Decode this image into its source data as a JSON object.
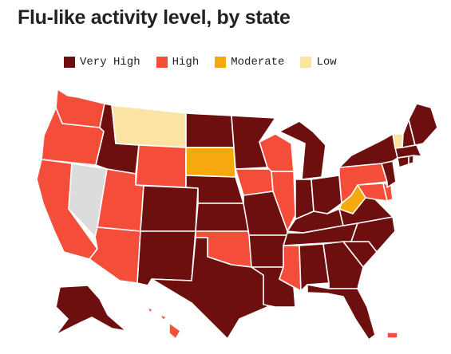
{
  "title": "Flu-like activity level, by state",
  "legend": [
    {
      "key": "very_high",
      "label": "Very High",
      "color": "#6d0f0f"
    },
    {
      "key": "high",
      "label": "High",
      "color": "#f44e3b"
    },
    {
      "key": "moderate",
      "label": "Moderate",
      "color": "#f6a90f"
    },
    {
      "key": "low",
      "label": "Low",
      "color": "#fbe3a3"
    }
  ],
  "no_data_color": "#dcdcdc",
  "states": {
    "WA": "high",
    "OR": "high",
    "CA": "high",
    "NV": "none",
    "ID": "very_high",
    "MT": "low",
    "WY": "high",
    "UT": "high",
    "AZ": "high",
    "CO": "very_high",
    "NM": "very_high",
    "ND": "very_high",
    "SD": "moderate",
    "NE": "very_high",
    "KS": "very_high",
    "OK": "high",
    "TX": "very_high",
    "MN": "very_high",
    "IA": "high",
    "MO": "very_high",
    "AR": "very_high",
    "LA": "very_high",
    "WI": "high",
    "IL": "high",
    "MI": "very_high",
    "IN": "very_high",
    "OH": "very_high",
    "KY": "very_high",
    "TN": "very_high",
    "MS": "high",
    "AL": "very_high",
    "GA": "very_high",
    "FL": "very_high",
    "SC": "very_high",
    "NC": "very_high",
    "VA": "very_high",
    "WV": "moderate",
    "MD": "high",
    "DE": "high",
    "PA": "high",
    "NJ": "very_high",
    "NY": "very_high",
    "CT": "very_high",
    "RI": "very_high",
    "MA": "very_high",
    "VT": "low",
    "NH": "very_high",
    "ME": "very_high",
    "AK": "very_high",
    "HI": "high",
    "PR": "high"
  }
}
